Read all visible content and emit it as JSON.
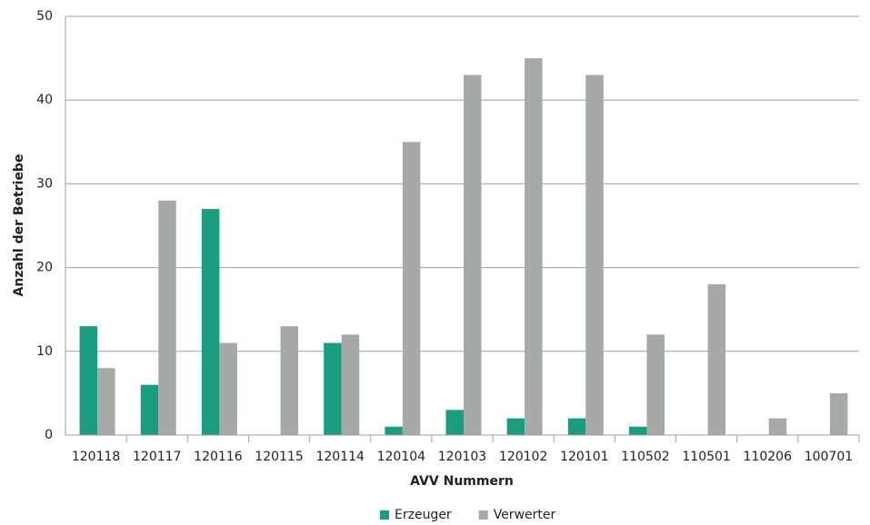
{
  "chart_data": {
    "type": "bar",
    "x_label": "AVV Nummern",
    "y_label": "Anzahl der Betriebe",
    "categories": [
      "120118",
      "120117",
      "120116",
      "120115",
      "120114",
      "120104",
      "120103",
      "120102",
      "120101",
      "110502",
      "110501",
      "110206",
      "100701"
    ],
    "series": [
      {
        "name": "Erzeuger",
        "color": "#1a9c7e",
        "values": [
          13,
          6,
          27,
          0,
          11,
          1,
          3,
          2,
          2,
          1,
          0,
          0,
          0
        ]
      },
      {
        "name": "Verwerter",
        "color": "#a5aaa9",
        "values": [
          8,
          28,
          11,
          13,
          12,
          35,
          43,
          45,
          43,
          12,
          18,
          2,
          5
        ]
      }
    ],
    "ylim": [
      0,
      50
    ],
    "yticks": [
      0,
      10,
      20,
      30,
      40,
      50
    ],
    "grid": true,
    "legend": "bottom"
  }
}
